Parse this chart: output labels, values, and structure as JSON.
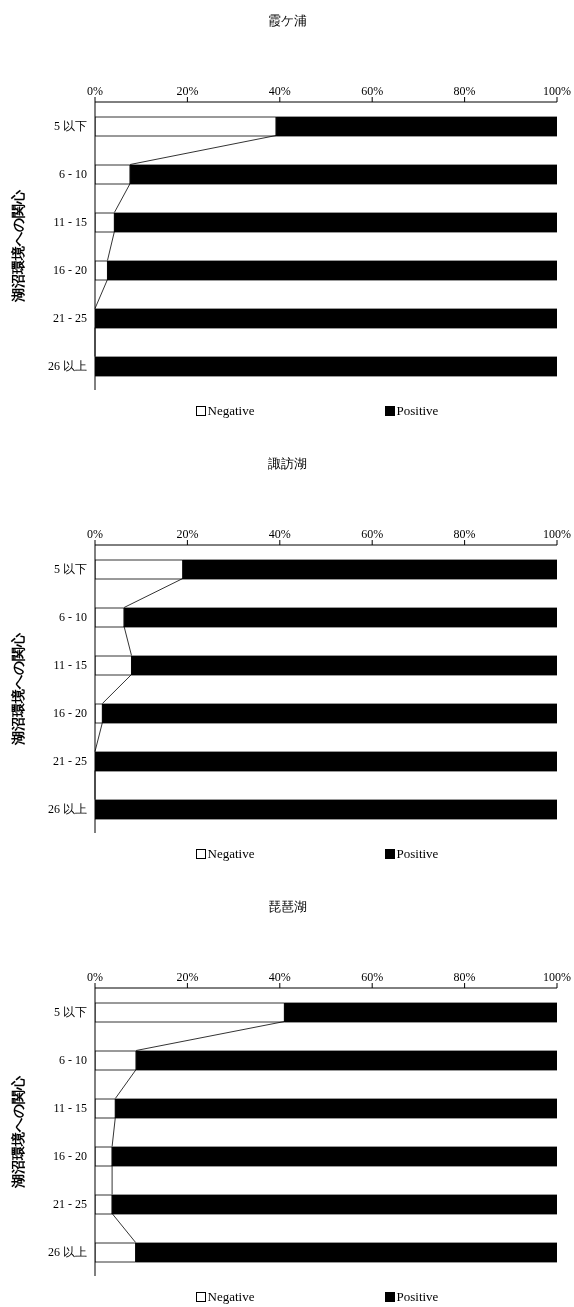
{
  "chart_data": [
    {
      "type": "bar",
      "orientation": "horizontal",
      "stacked": true,
      "title": "霞ケ浦",
      "ylabel": "湖沼環境への関心",
      "categories": [
        "5 以下",
        "6 - 10",
        "11 - 15",
        "16 - 20",
        "21 - 25",
        "26 以上"
      ],
      "series": [
        {
          "name": "Negative",
          "color": "#ffffff",
          "values": [
            39.2,
            7.6,
            4.2,
            2.7,
            0,
            0
          ]
        },
        {
          "name": "Positive",
          "color": "#000000",
          "values": [
            60.8,
            92.4,
            95.8,
            97.3,
            100,
            100
          ]
        }
      ],
      "xlim": [
        0,
        100
      ],
      "xticks": [
        {
          "value": 0,
          "label": "0%"
        },
        {
          "value": 20,
          "label": "20%"
        },
        {
          "value": 40,
          "label": "40%"
        },
        {
          "value": 60,
          "label": "60%"
        },
        {
          "value": 80,
          "label": "80%"
        },
        {
          "value": 100,
          "label": "100%"
        }
      ],
      "grid": false,
      "legend": "bottom"
    },
    {
      "type": "bar",
      "orientation": "horizontal",
      "stacked": true,
      "title": "諏訪湖",
      "ylabel": "湖沼環境への関心",
      "categories": [
        "5 以下",
        "6 - 10",
        "11 - 15",
        "16 - 20",
        "21 - 25",
        "26 以上"
      ],
      "series": [
        {
          "name": "Negative",
          "color": "#ffffff",
          "values": [
            19.0,
            6.3,
            7.9,
            1.6,
            0,
            0
          ]
        },
        {
          "name": "Positive",
          "color": "#000000",
          "values": [
            81.0,
            93.7,
            92.1,
            98.4,
            100,
            100
          ]
        }
      ],
      "xlim": [
        0,
        100
      ],
      "xticks": [
        {
          "value": 0,
          "label": "0%"
        },
        {
          "value": 20,
          "label": "20%"
        },
        {
          "value": 40,
          "label": "40%"
        },
        {
          "value": 60,
          "label": "60%"
        },
        {
          "value": 80,
          "label": "80%"
        },
        {
          "value": 100,
          "label": "100%"
        }
      ],
      "grid": false,
      "legend": "bottom"
    },
    {
      "type": "bar",
      "orientation": "horizontal",
      "stacked": true,
      "title": "琵琶湖",
      "ylabel": "湖沼環境への関心",
      "categories": [
        "5 以下",
        "6 - 10",
        "11 - 15",
        "16 - 20",
        "21 - 25",
        "26 以上"
      ],
      "series": [
        {
          "name": "Negative",
          "color": "#ffffff",
          "values": [
            41.0,
            8.9,
            4.4,
            3.7,
            3.7,
            8.8
          ]
        },
        {
          "name": "Positive",
          "color": "#000000",
          "values": [
            59.0,
            91.1,
            95.6,
            96.3,
            96.3,
            91.2
          ]
        }
      ],
      "xlim": [
        0,
        100
      ],
      "xticks": [
        {
          "value": 0,
          "label": "0%"
        },
        {
          "value": 20,
          "label": "20%"
        },
        {
          "value": 40,
          "label": "40%"
        },
        {
          "value": 60,
          "label": "60%"
        },
        {
          "value": 80,
          "label": "80%"
        },
        {
          "value": 100,
          "label": "100%"
        }
      ],
      "grid": false,
      "legend": "bottom"
    }
  ]
}
